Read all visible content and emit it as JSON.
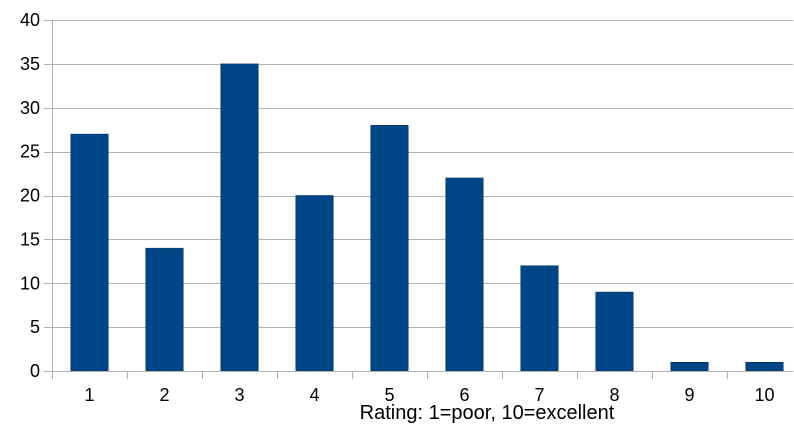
{
  "chart_data": {
    "type": "bar",
    "title": "",
    "xlabel": "Rating: 1=poor, 10=excellent",
    "ylabel": "",
    "categories": [
      "1",
      "2",
      "3",
      "4",
      "5",
      "6",
      "7",
      "8",
      "9",
      "10"
    ],
    "values": [
      27,
      14,
      35,
      20,
      28,
      22,
      12,
      9,
      1,
      1
    ],
    "ylim": [
      0,
      40
    ],
    "yticks": [
      "0",
      "5",
      "10",
      "15",
      "20",
      "25",
      "30",
      "35",
      "40"
    ],
    "grid": true,
    "legend": "none",
    "bar_color": "#004586",
    "grid_color": "#b3b3b3",
    "axis_color": "#b3b3b3"
  }
}
